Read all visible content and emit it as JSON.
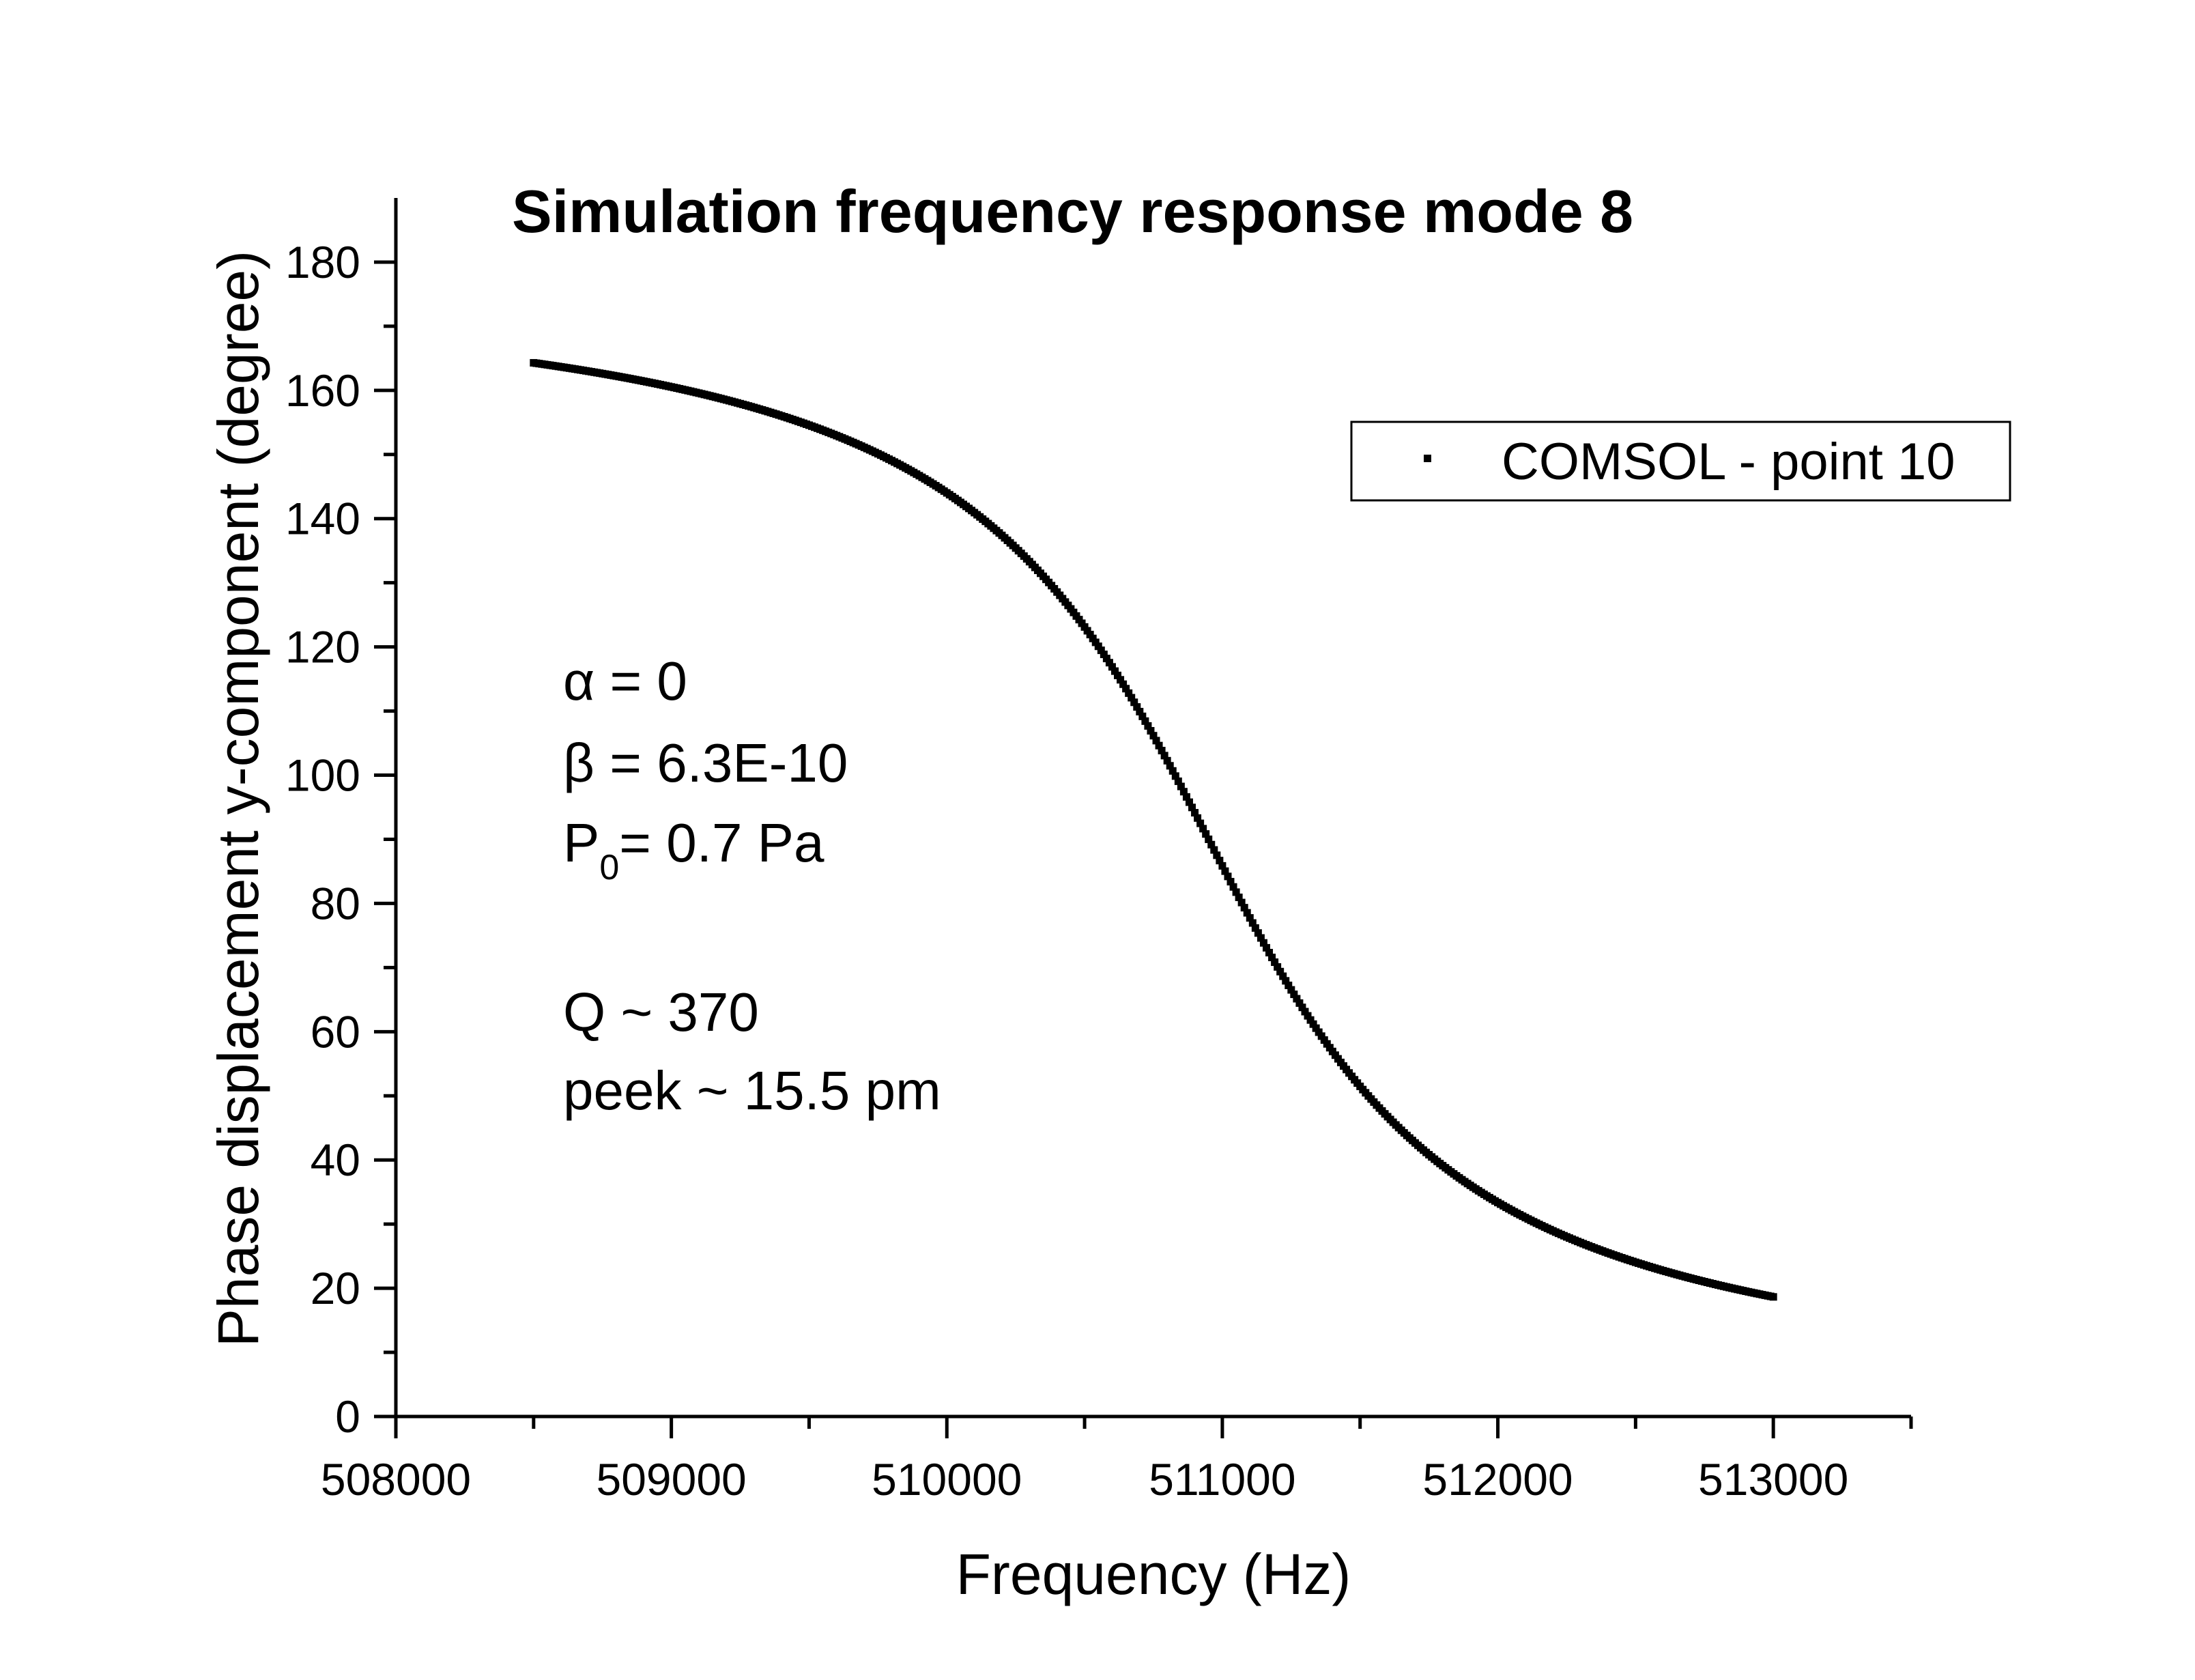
{
  "chart_data": {
    "type": "scatter",
    "title": "Simulation frequency response mode 8",
    "xlabel": "Frequency (Hz)",
    "ylabel": "Phase displacement y-component (degree)",
    "xlim": [
      508000,
      513500
    ],
    "ylim": [
      0,
      190
    ],
    "x_ticks": [
      508000,
      509000,
      510000,
      511000,
      512000,
      513000
    ],
    "y_ticks": [
      0,
      20,
      40,
      60,
      80,
      100,
      120,
      140,
      160,
      180
    ],
    "grid": false,
    "legend": {
      "placement": "top-right",
      "entries": [
        "COMSOL - point 10"
      ]
    },
    "series": [
      {
        "name": "COMSOL - point 10",
        "color": "#000000",
        "marker": "square",
        "model": {
          "x_start": 508500,
          "x_end": 513000,
          "x_step": 10,
          "f0": 510950,
          "Q": 370
        }
      }
    ],
    "annotations": {
      "alpha": {
        "sym": "α",
        "rest": " = 0"
      },
      "beta": {
        "sym": "β",
        "rest": " = 6.3E-10"
      },
      "p0": {
        "main": "P",
        "sub": "0",
        "rest": "= 0.7 Pa"
      },
      "q": "Q ~ 370",
      "peek": "peek ~ 15.5 pm"
    }
  }
}
